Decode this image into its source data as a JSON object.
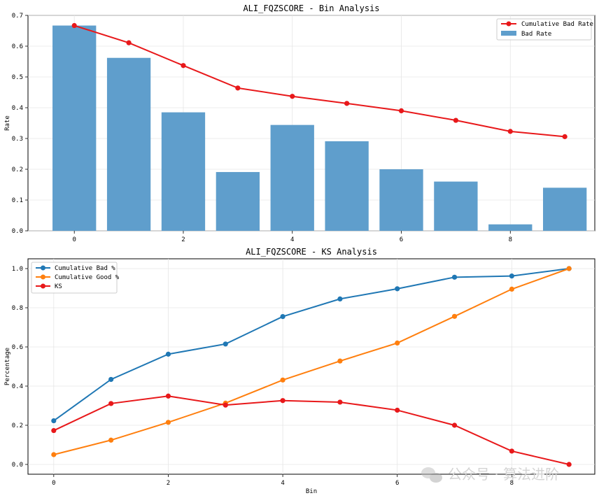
{
  "chart_data": [
    {
      "type": "bar",
      "title": "ALI_FQZSCORE - Bin Analysis",
      "xlabel": "",
      "ylabel": "Rate",
      "x": [
        0,
        1,
        2,
        3,
        4,
        5,
        6,
        7,
        8,
        9
      ],
      "xticks": [
        0,
        2,
        4,
        6,
        8
      ],
      "yticks": [
        0,
        0.1,
        0.2,
        0.3,
        0.4,
        0.5,
        0.6,
        0.7
      ],
      "xlim": [
        -0.85,
        9.55
      ],
      "ylim": [
        0,
        0.7
      ],
      "grid": true,
      "legend_position": "top-right",
      "series": [
        {
          "name": "Cumulative Bad Rate",
          "kind": "line",
          "color": "#e8181a",
          "values": [
            0.667,
            0.611,
            0.537,
            0.464,
            0.437,
            0.414,
            0.39,
            0.359,
            0.323,
            0.306
          ]
        },
        {
          "name": "Bad Rate",
          "kind": "bar",
          "color": "#5f9ecc",
          "values": [
            0.667,
            0.562,
            0.385,
            0.191,
            0.344,
            0.291,
            0.2,
            0.16,
            0.021,
            0.14
          ]
        }
      ]
    },
    {
      "type": "line",
      "title": "ALI_FQZSCORE - KS Analysis",
      "xlabel": "Bin",
      "ylabel": "Percentage",
      "x": [
        0,
        1,
        2,
        3,
        4,
        5,
        6,
        7,
        8,
        9
      ],
      "xticks": [
        0,
        2,
        4,
        6,
        8
      ],
      "yticks": [
        0.0,
        0.2,
        0.4,
        0.6,
        0.8,
        1.0
      ],
      "xlim": [
        -0.45,
        9.45
      ],
      "ylim": [
        -0.05,
        1.05
      ],
      "grid": true,
      "legend_position": "top-left",
      "series": [
        {
          "name": "Cumulative Bad %",
          "color": "#1f77b4",
          "values": [
            0.223,
            0.434,
            0.563,
            0.615,
            0.755,
            0.845,
            0.897,
            0.956,
            0.962,
            1.0
          ]
        },
        {
          "name": "Cumulative Good %",
          "color": "#ff7f0e",
          "values": [
            0.05,
            0.124,
            0.215,
            0.313,
            0.431,
            0.528,
            0.62,
            0.756,
            0.895,
            1.0
          ]
        },
        {
          "name": "KS",
          "color": "#e8181a",
          "values": [
            0.173,
            0.311,
            0.349,
            0.303,
            0.326,
            0.318,
            0.277,
            0.2,
            0.068,
            0.0
          ]
        }
      ]
    }
  ],
  "watermark": "公众号 · 算法进阶"
}
